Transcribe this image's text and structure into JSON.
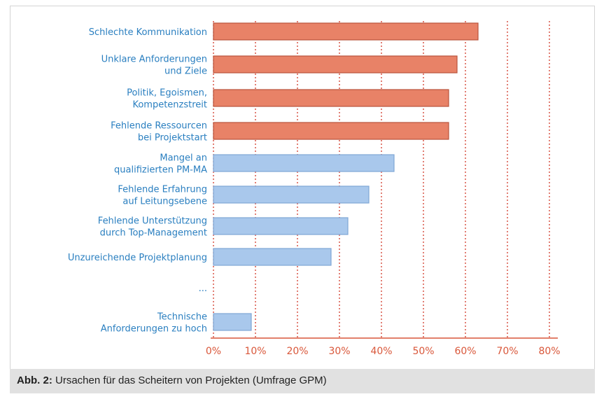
{
  "caption": {
    "prefix": "Abb. 2:",
    "text": "Ursachen für das Scheitern von Projekten (Umfrage GPM)"
  },
  "colors": {
    "highlight_bar": "#e88267",
    "highlight_stroke": "#b9543c",
    "normal_bar": "#a9c8ec",
    "normal_stroke": "#7fa7d6",
    "category_text": "#2a7fc0",
    "axis_text": "#d9573a",
    "gridline": "#d23a2a",
    "baseline": "#d9573a"
  },
  "chart_data": {
    "type": "bar",
    "orientation": "horizontal",
    "title": "",
    "xlabel": "",
    "ylabel": "",
    "xlim": [
      0,
      80
    ],
    "grid": "vertical dotted",
    "ticks": [
      "0%",
      "10%",
      "20%",
      "30%",
      "40%",
      "50%",
      "60%",
      "70%",
      "80%"
    ],
    "categories": [
      [
        "Schlechte Kommunikation"
      ],
      [
        "Unklare Anforderungen",
        "und Ziele"
      ],
      [
        "Politik, Egoismen,",
        "Kompetenzstreit"
      ],
      [
        "Fehlende Ressourcen",
        "bei Projektstart"
      ],
      [
        "Mangel an",
        "qualifizierten PM-MA"
      ],
      [
        "Fehlende Erfahrung",
        "auf Leitungsebene"
      ],
      [
        "Fehlende Unterstützung",
        "durch Top-Management"
      ],
      [
        "Unzureichende Projektplanung"
      ],
      [
        "..."
      ],
      [
        "Technische",
        "Anforderungen zu hoch"
      ]
    ],
    "values": [
      63,
      58,
      56,
      56,
      43,
      37,
      32,
      28,
      null,
      9
    ],
    "highlighted": [
      true,
      true,
      true,
      true,
      false,
      false,
      false,
      false,
      false,
      false
    ]
  }
}
